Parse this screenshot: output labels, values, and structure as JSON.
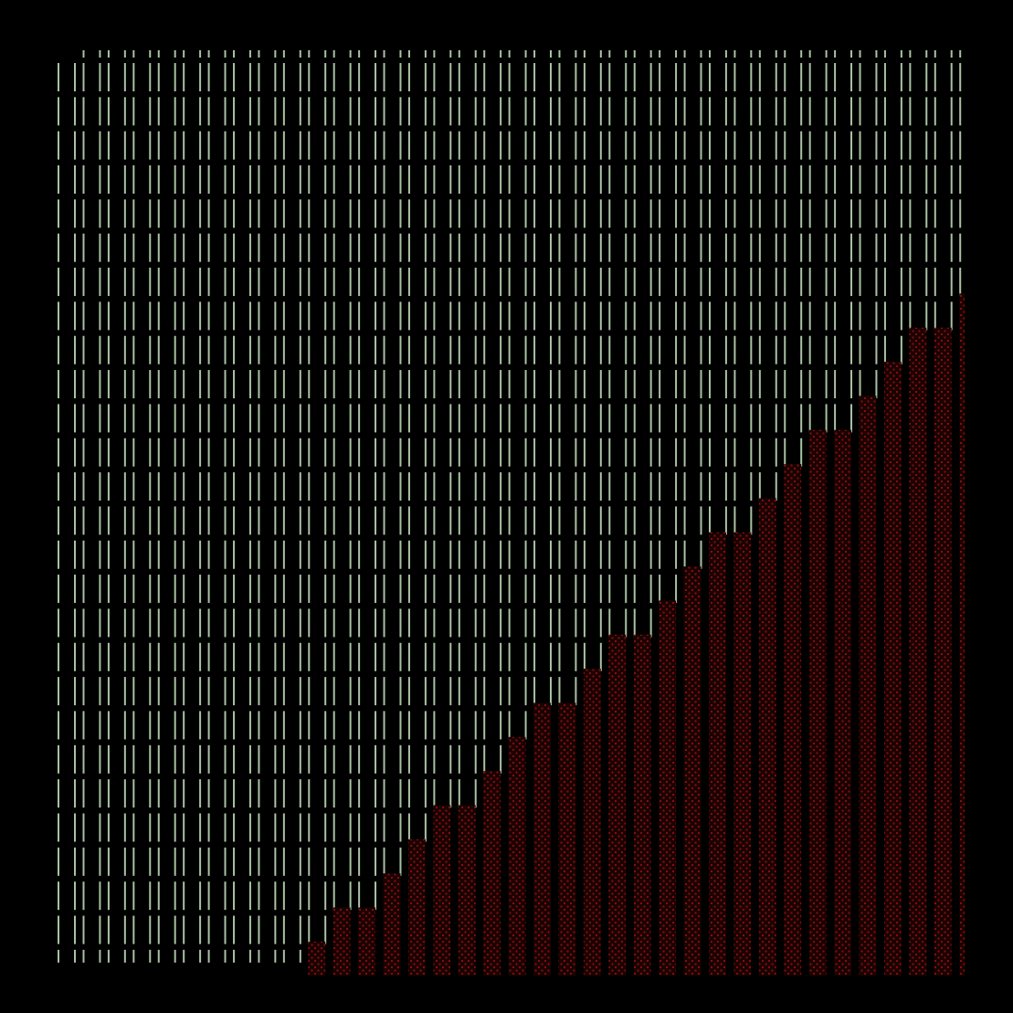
{
  "colors": {
    "background": "#000000",
    "bar": "#a9c2a3",
    "red_fill": "#1a0303",
    "red_dot": "#8a0c0c"
  }
}
